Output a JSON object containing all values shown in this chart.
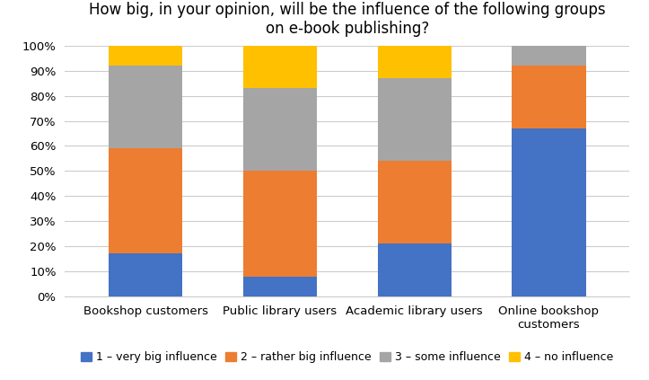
{
  "categories": [
    "Bookshop customers",
    "Public library users",
    "Academic library users",
    "Online bookshop\ncustomers"
  ],
  "series": {
    "1 – very big influence": [
      17,
      8,
      21,
      67
    ],
    "2 – rather big influence": [
      42,
      42,
      33,
      25
    ],
    "3 – some influence": [
      33,
      33,
      33,
      8
    ],
    "4 – no influence": [
      8,
      17,
      13,
      0
    ]
  },
  "colors": {
    "1 – very big influence": "#4472C4",
    "2 – rather big influence": "#ED7D31",
    "3 – some influence": "#A5A5A5",
    "4 – no influence": "#FFC000"
  },
  "title": "How big, in your opinion, will be the influence of the following groups\non e-book publishing?",
  "ylim": [
    0,
    100
  ],
  "yticks": [
    0,
    10,
    20,
    30,
    40,
    50,
    60,
    70,
    80,
    90,
    100
  ],
  "ytick_labels": [
    "0%",
    "10%",
    "20%",
    "30%",
    "40%",
    "50%",
    "60%",
    "70%",
    "80%",
    "90%",
    "100%"
  ],
  "background_color": "#FFFFFF",
  "bar_width": 0.55,
  "title_fontsize": 12,
  "legend_fontsize": 9,
  "tick_fontsize": 9.5
}
